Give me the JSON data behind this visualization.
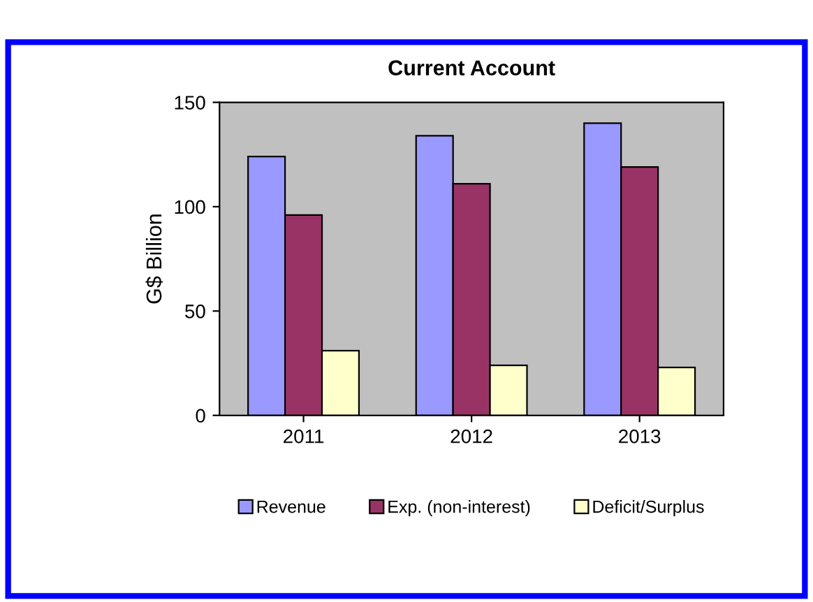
{
  "chart_data": {
    "type": "bar",
    "title": "Current Account",
    "ylabel": "G$ Billion",
    "categories": [
      "2011",
      "2012",
      "2013"
    ],
    "series": [
      {
        "name": "Revenue",
        "color": "#9999ff",
        "values": [
          124,
          134,
          140
        ]
      },
      {
        "name": "Exp. (non-interest)",
        "color": "#993366",
        "values": [
          96,
          111,
          119
        ]
      },
      {
        "name": "Deficit/Surplus",
        "color": "#ffffcc",
        "values": [
          31,
          24,
          23
        ]
      }
    ],
    "ylim": [
      0,
      150
    ],
    "yticks": [
      0,
      50,
      100,
      150
    ],
    "grid": false,
    "legend": "bottom"
  }
}
